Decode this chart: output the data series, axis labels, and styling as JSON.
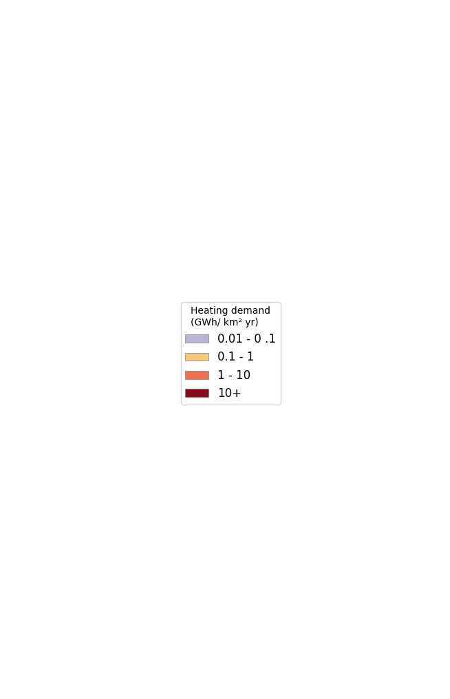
{
  "title": "",
  "legend_title_line1": "Heating demand",
  "legend_title_line2": "(GWh/ km² yr)",
  "legend_entries": [
    {
      "label": "0.01 - 0 .1",
      "color": "#b8b4d8"
    },
    {
      "label": "0.1 - 1",
      "color": "#f5c97a"
    },
    {
      "label": "1 - 10",
      "color": "#f07050"
    },
    {
      "label": "10+",
      "color": "#8b0a1a"
    }
  ],
  "background_color": "#ffffff",
  "map_boundary_color": "#000000",
  "figsize": [
    6.54,
    10.16
  ],
  "dpi": 100
}
